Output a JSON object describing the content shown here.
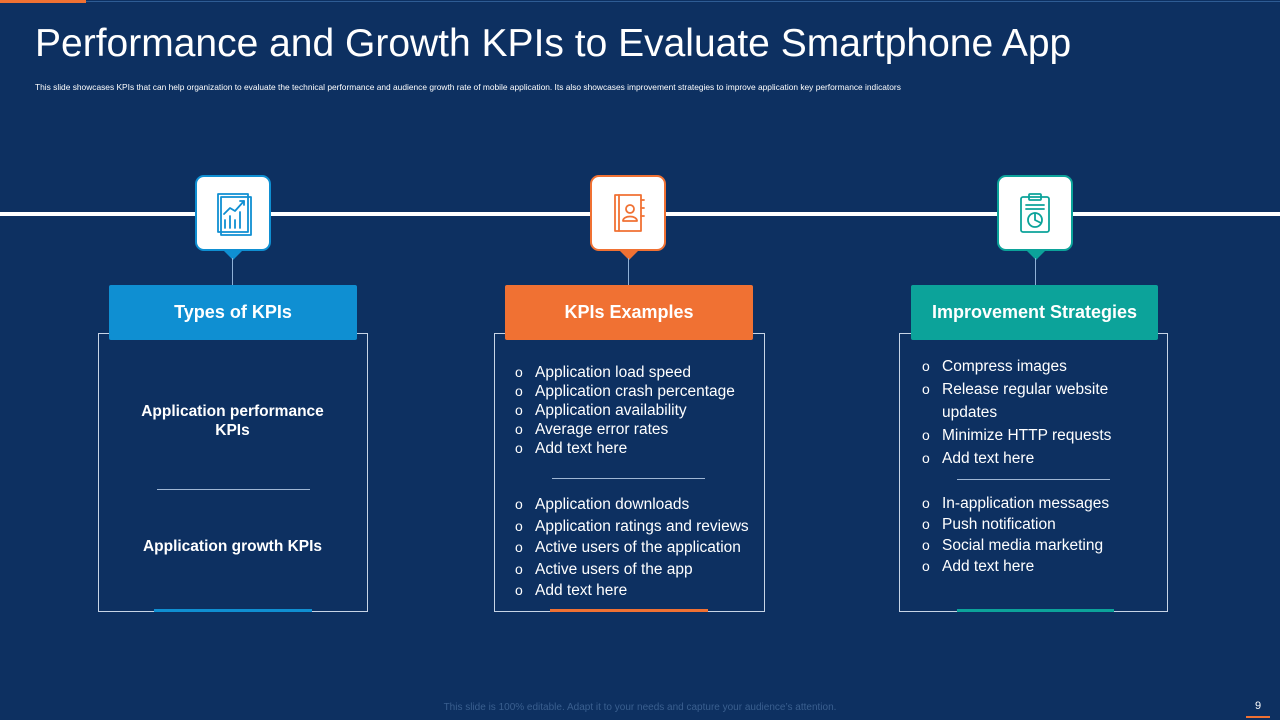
{
  "slide": {
    "title": "Performance and Growth KPIs to Evaluate Smartphone App",
    "subtitle": "This slide showcases KPIs that can help organization to evaluate the technical performance and audience growth rate of mobile application. Its also showcases improvement strategies to improve application key performance indicators",
    "footer": "This slide is 100% editable. Adapt it to your needs and capture your audience’s attention.",
    "page_number": "9"
  },
  "colors": {
    "background": "#0d3061",
    "blue": "#0f8fd2",
    "orange": "#f07133",
    "teal": "#0ca39a"
  },
  "columns": [
    {
      "icon": "growth-chart-icon",
      "header": "Types of KPIs",
      "types": [
        {
          "line1": "Application performance",
          "line2": "KPIs"
        },
        {
          "line1": "Application growth KPIs",
          "line2": ""
        }
      ]
    },
    {
      "icon": "contact-book-icon",
      "header": "KPIs Examples",
      "group1": [
        "Application load speed",
        "Application crash percentage",
        "Application availability",
        "Average error rates",
        "Add text here"
      ],
      "group2": [
        "Application downloads",
        "Application ratings and reviews",
        "Active users of the application",
        "Active users of the app",
        "Add text here"
      ]
    },
    {
      "icon": "clipboard-chart-icon",
      "header": "Improvement Strategies",
      "group1": [
        "Compress images",
        "Release regular website updates",
        "Minimize HTTP requests",
        "Add text here"
      ],
      "group2": [
        "In-application messages",
        "Push notification",
        "Social media marketing",
        "Add text here"
      ]
    }
  ]
}
